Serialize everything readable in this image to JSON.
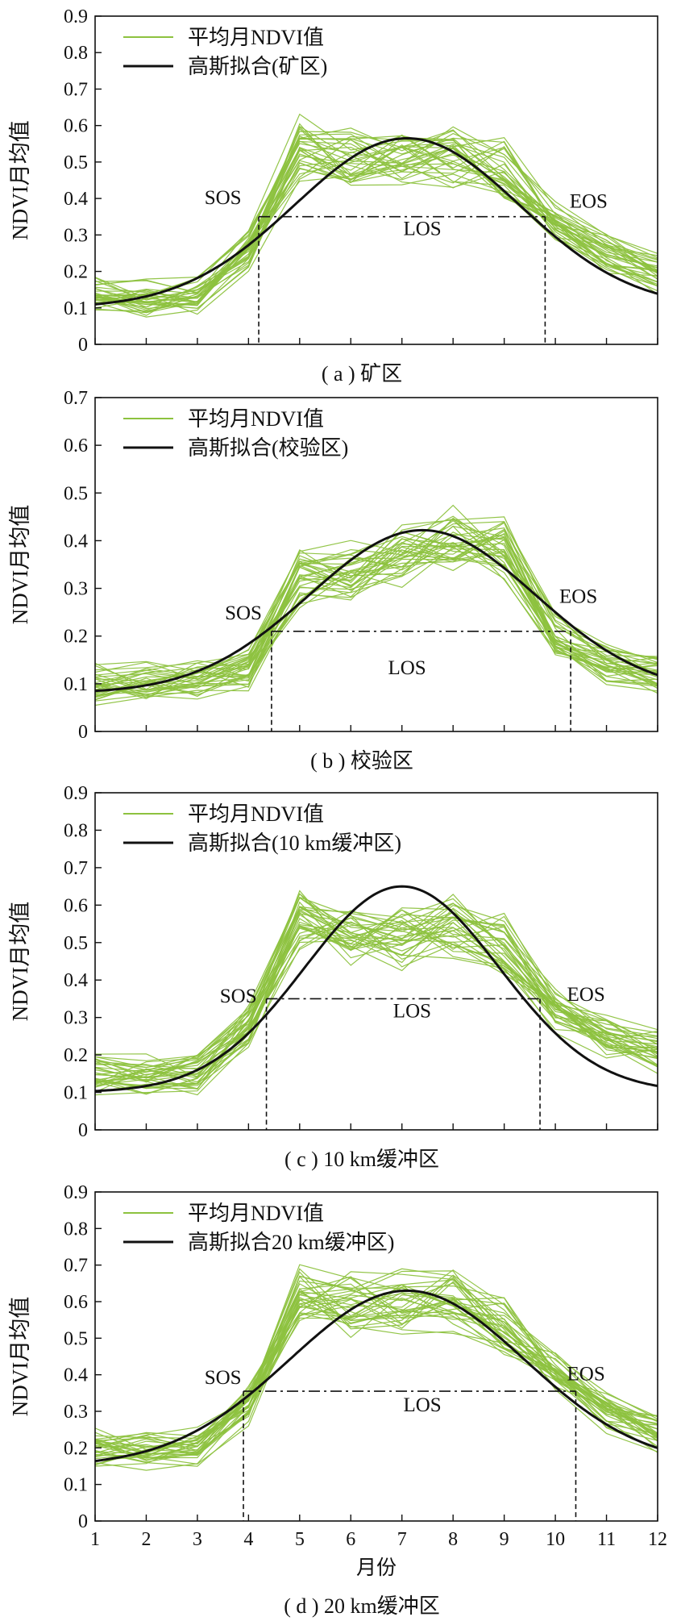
{
  "chart_data": [
    {
      "type": "line",
      "caption": "( a ) 矿区",
      "ylabel": "NDVI月均值",
      "xlim": [
        1,
        12
      ],
      "ylim": [
        0,
        0.9
      ],
      "yticks": [
        "0",
        "0.1",
        "0.2",
        "0.3",
        "0.4",
        "0.5",
        "0.6",
        "0.7",
        "0.8",
        "0.9"
      ],
      "legend": {
        "position": "top-left",
        "entries": [
          "平均月NDVI值",
          "高斯拟合(矿区)"
        ]
      },
      "gaussian": {
        "amplitude": 0.465,
        "mean": 7.1,
        "sigma": 2.2,
        "baseline": 0.1
      },
      "threshold": 0.35,
      "sos": 4.2,
      "eos": 9.8,
      "annotations": [
        "SOS",
        "EOS",
        "LOS"
      ],
      "mean_ndvi": [
        0.13,
        0.125,
        0.14,
        0.26,
        0.54,
        0.51,
        0.505,
        0.51,
        0.48,
        0.33,
        0.25,
        0.2
      ]
    },
    {
      "type": "line",
      "caption": "( b ) 校验区",
      "ylabel": "NDVI月均值",
      "xlim": [
        1,
        12
      ],
      "ylim": [
        0,
        0.7
      ],
      "yticks": [
        "0",
        "0.1",
        "0.2",
        "0.3",
        "0.4",
        "0.5",
        "0.6",
        "0.7"
      ],
      "legend": {
        "position": "top-left",
        "entries": [
          "平均月NDVI值",
          "高斯拟合(校验区)"
        ]
      },
      "gaussian": {
        "amplitude": 0.342,
        "mean": 7.4,
        "sigma": 2.2,
        "baseline": 0.08
      },
      "threshold": 0.21,
      "sos": 4.45,
      "eos": 10.3,
      "annotations": [
        "SOS",
        "EOS",
        "LOS"
      ],
      "mean_ndvi": [
        0.1,
        0.1,
        0.11,
        0.13,
        0.32,
        0.34,
        0.36,
        0.4,
        0.38,
        0.2,
        0.14,
        0.12
      ]
    },
    {
      "type": "line",
      "caption": "( c ) 10 km缓冲区",
      "ylabel": "NDVI月均值",
      "xlim": [
        1,
        12
      ],
      "ylim": [
        0,
        0.9
      ],
      "yticks": [
        "0",
        "0.1",
        "0.2",
        "0.3",
        "0.4",
        "0.5",
        "0.6",
        "0.7",
        "0.8",
        "0.9"
      ],
      "legend": {
        "position": "top-left",
        "entries": [
          "平均月NDVI值",
          "高斯拟合(10 km缓冲区)"
        ]
      },
      "gaussian": {
        "amplitude": 0.55,
        "mean": 7.0,
        "sigma": 1.9,
        "baseline": 0.1
      },
      "threshold": 0.35,
      "sos": 4.35,
      "eos": 9.7,
      "annotations": [
        "SOS",
        "EOS",
        "LOS"
      ],
      "mean_ndvi": [
        0.15,
        0.14,
        0.15,
        0.28,
        0.56,
        0.53,
        0.52,
        0.54,
        0.49,
        0.32,
        0.25,
        0.21
      ]
    },
    {
      "type": "line",
      "caption": "( d ) 20 km缓冲区",
      "xlabel": "月份",
      "ylabel": "NDVI月均值",
      "xlim": [
        1,
        12
      ],
      "xticks": [
        "1",
        "2",
        "3",
        "4",
        "5",
        "6",
        "7",
        "8",
        "9",
        "10",
        "11",
        "12"
      ],
      "ylim": [
        0,
        0.9
      ],
      "yticks": [
        "0",
        "0.1",
        "0.2",
        "0.3",
        "0.4",
        "0.5",
        "0.6",
        "0.7",
        "0.8",
        "0.9"
      ],
      "legend": {
        "position": "top-left",
        "entries": [
          "平均月NDVI值",
          "高斯拟合20 km缓冲区)"
        ]
      },
      "gaussian": {
        "amplitude": 0.48,
        "mean": 7.1,
        "sigma": 2.3,
        "baseline": 0.15
      },
      "threshold": 0.355,
      "sos": 3.9,
      "eos": 10.4,
      "annotations": [
        "SOS",
        "EOS",
        "LOS"
      ],
      "mean_ndvi": [
        0.2,
        0.19,
        0.2,
        0.32,
        0.61,
        0.59,
        0.6,
        0.6,
        0.53,
        0.4,
        0.3,
        0.24
      ]
    }
  ],
  "colors": {
    "ndvi_lines": "#8dc23f",
    "fit_line": "#111111",
    "axis": "#111111"
  }
}
